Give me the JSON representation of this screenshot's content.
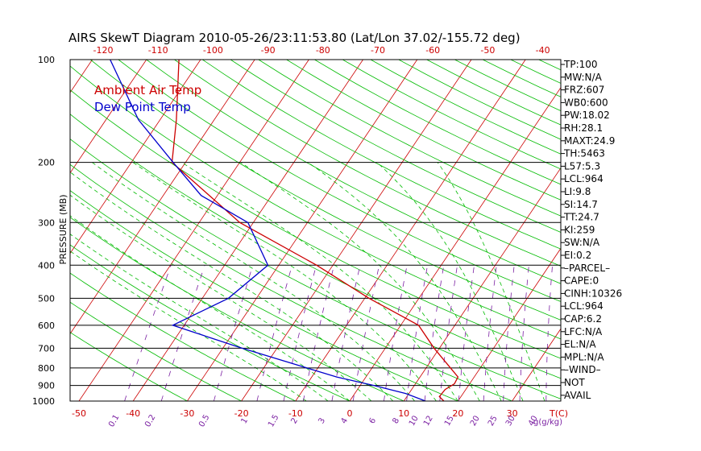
{
  "title": "AIRS SkewT Diagram 2010-05-26/23:11:53.80 (Lat/Lon 37.02/-155.72 deg)",
  "chart_data": {
    "type": "line",
    "ylabel": "PRESSURE (MB)",
    "y_scale": "log",
    "ylim": [
      1000,
      100
    ],
    "pressure_ticks": [
      100,
      200,
      300,
      400,
      500,
      600,
      700,
      800,
      900,
      1000
    ],
    "xlim": [
      -50,
      40
    ],
    "temp_ticks_bottom": [
      "-50",
      "-40",
      "-30",
      "-20",
      "-10",
      "0",
      "10",
      "20",
      "30"
    ],
    "temp_ticks_top": [
      "-120",
      "-110",
      "-100",
      "-90",
      "-80",
      "-70",
      "-60",
      "-50",
      "-40"
    ],
    "temp_unit_label": "T(C)",
    "mixing_ratio_ticks": [
      "0.1",
      "0.2",
      "0.5",
      "1",
      "1.5",
      "2",
      "3",
      "4",
      "6",
      "8",
      "10",
      "12",
      "15",
      "20",
      "25",
      "30",
      "40"
    ],
    "mixing_ratio_unit": "g(g/kg)",
    "legend": [
      "Ambient Air Temp",
      "Dew Point Temp"
    ],
    "colors": {
      "temperature": "#cc0000",
      "dewpoint": "#0000cc",
      "isotherms": "#cc0000",
      "dry_adiabats": "#00bb00",
      "moist_adiabats": "#00bb00",
      "mixing_ratio": "#7a1fa2",
      "isobars": "#000000"
    },
    "series": [
      {
        "name": "Ambient Air Temp",
        "points": [
          {
            "p": 1000,
            "t": 17.4
          },
          {
            "p": 970,
            "t": 16.0
          },
          {
            "p": 925,
            "t": 16.2
          },
          {
            "p": 890,
            "t": 17.2
          },
          {
            "p": 850,
            "t": 17.0
          },
          {
            "p": 700,
            "t": 9.0
          },
          {
            "p": 600,
            "t": 3.3
          },
          {
            "p": 500,
            "t": -9.2
          },
          {
            "p": 400,
            "t": -23.0
          },
          {
            "p": 300,
            "t": -42.5
          },
          {
            "p": 200,
            "t": -62.5
          },
          {
            "p": 150,
            "t": -67.0
          },
          {
            "p": 100,
            "t": -74.0
          }
        ]
      },
      {
        "name": "Dew Point Temp",
        "points": [
          {
            "p": 1000,
            "t": 14.0
          },
          {
            "p": 950,
            "t": 9.4
          },
          {
            "p": 900,
            "t": 2.5
          },
          {
            "p": 850,
            "t": -5.4
          },
          {
            "p": 700,
            "t": -26.5
          },
          {
            "p": 600,
            "t": -42.1
          },
          {
            "p": 500,
            "t": -35.2
          },
          {
            "p": 400,
            "t": -32.0
          },
          {
            "p": 300,
            "t": -41.0
          },
          {
            "p": 250,
            "t": -53.0
          },
          {
            "p": 200,
            "t": -62.3
          },
          {
            "p": 150,
            "t": -74.0
          },
          {
            "p": 100,
            "t": -86.7
          }
        ]
      }
    ]
  },
  "indices": [
    "TP:100",
    "MW:N/A",
    "FRZ:607",
    "WB0:600",
    "PW:18.02",
    "RH:28.1",
    "MAXT:24.9",
    "TH:5463",
    "L57:5.3",
    "LCL:964",
    "LI:9.8",
    "SI:14.7",
    "TT:24.7",
    "KI:259",
    "SW:N/A",
    "EI:0.2",
    "–PARCEL–",
    "CAPE:0",
    "CINH:10326",
    "LCL:964",
    "CAP:6.2",
    "LFC:N/A",
    "EL:N/A",
    "MPL:N/A",
    "–WIND–",
    "NOT",
    "AVAIL"
  ]
}
